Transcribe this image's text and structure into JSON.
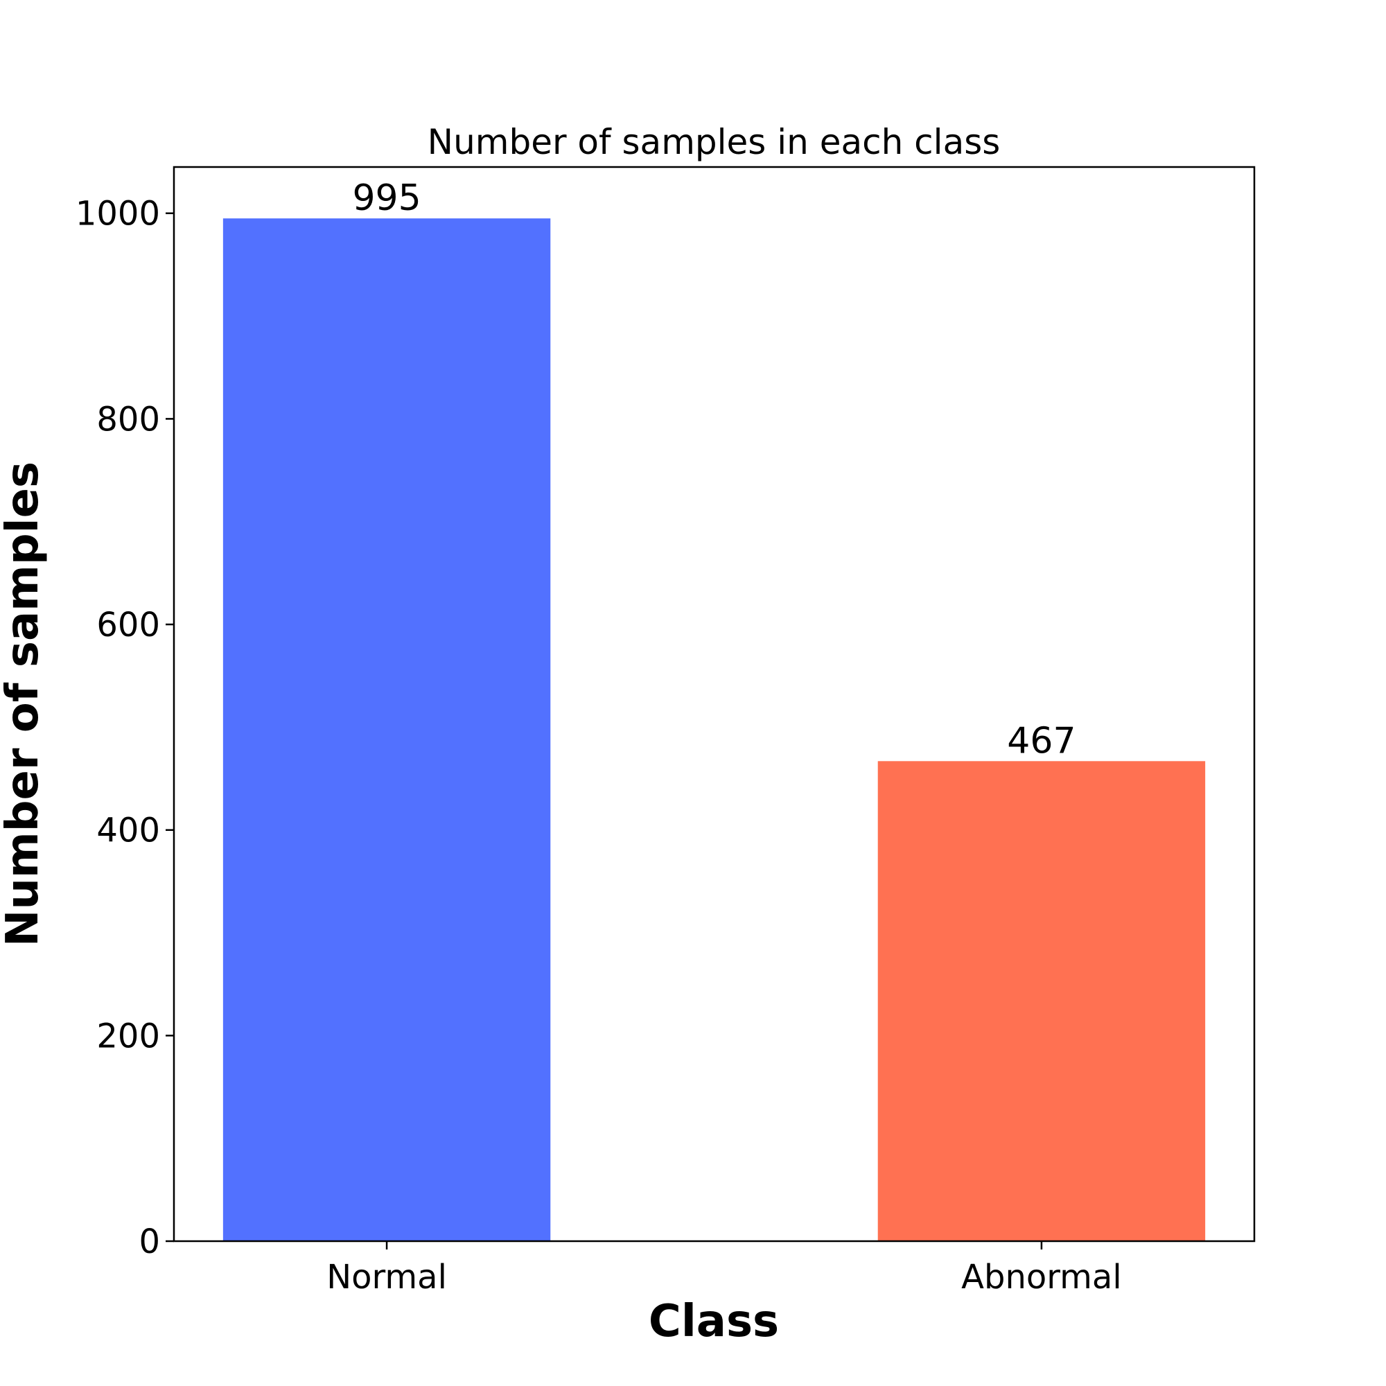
{
  "chart_data": {
    "type": "bar",
    "title": "Number of samples in each class",
    "xlabel": "Class",
    "ylabel": "Number of samples",
    "categories": [
      "Normal",
      "Abnormal"
    ],
    "values": [
      995,
      467
    ],
    "data_labels": [
      "995",
      "467"
    ],
    "colors": [
      "#5271FF",
      "#FF7152"
    ],
    "ylim": [
      0,
      1045
    ],
    "yticks": [
      0,
      200,
      400,
      600,
      800,
      1000
    ],
    "ytick_labels": [
      "0",
      "200",
      "400",
      "600",
      "800",
      "1000"
    ],
    "grid": false,
    "legend": false
  }
}
